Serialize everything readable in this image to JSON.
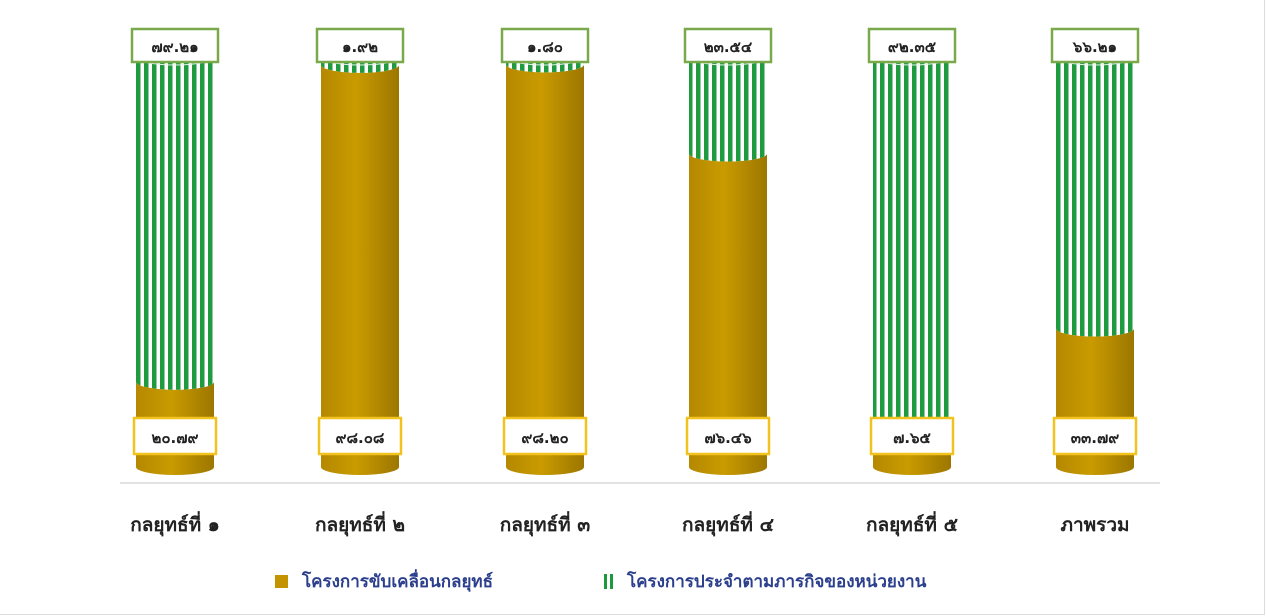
{
  "colors": {
    "driving": "#c39400",
    "driving_dark": "#8f6d00",
    "mission_green": "#1f9a3f",
    "mission_white": "#ffffff",
    "label_border_top": "#79a94a",
    "label_border_bottom": "#f2c21f",
    "axis": "#d9d9d9"
  },
  "chart_data": {
    "type": "bar",
    "stacked": true,
    "percent": true,
    "categories": [
      "กลยุทธ์ที่ ๑",
      "กลยุทธ์ที่ ๒",
      "กลยุทธ์ที่ ๓",
      "กลยุทธ์ที่ ๔",
      "กลยุทธ์ที่ ๕",
      "ภาพรวม"
    ],
    "series": [
      {
        "name": "โครงการขับเคลื่อนกลยุทธ์",
        "values": [
          20.79,
          98.08,
          98.2,
          76.46,
          7.65,
          33.79
        ],
        "labels": [
          "๒๐.๗๙",
          "๙๘.๐๘",
          "๙๘.๒๐",
          "๗๖.๔๖",
          "๗.๖๕",
          "๓๓.๗๙"
        ]
      },
      {
        "name": "โครงการประจำตามภารกิจของหน่วยงาน",
        "values": [
          79.21,
          1.92,
          1.8,
          23.54,
          92.35,
          66.21
        ],
        "labels": [
          "๗๙.๒๑",
          "๑.๙๒",
          "๑.๘๐",
          "๒๓.๕๔",
          "๙๒.๓๕",
          "๖๖.๒๑"
        ]
      }
    ],
    "ylim": [
      0,
      100
    ],
    "legend_position": "bottom",
    "grid": false
  }
}
